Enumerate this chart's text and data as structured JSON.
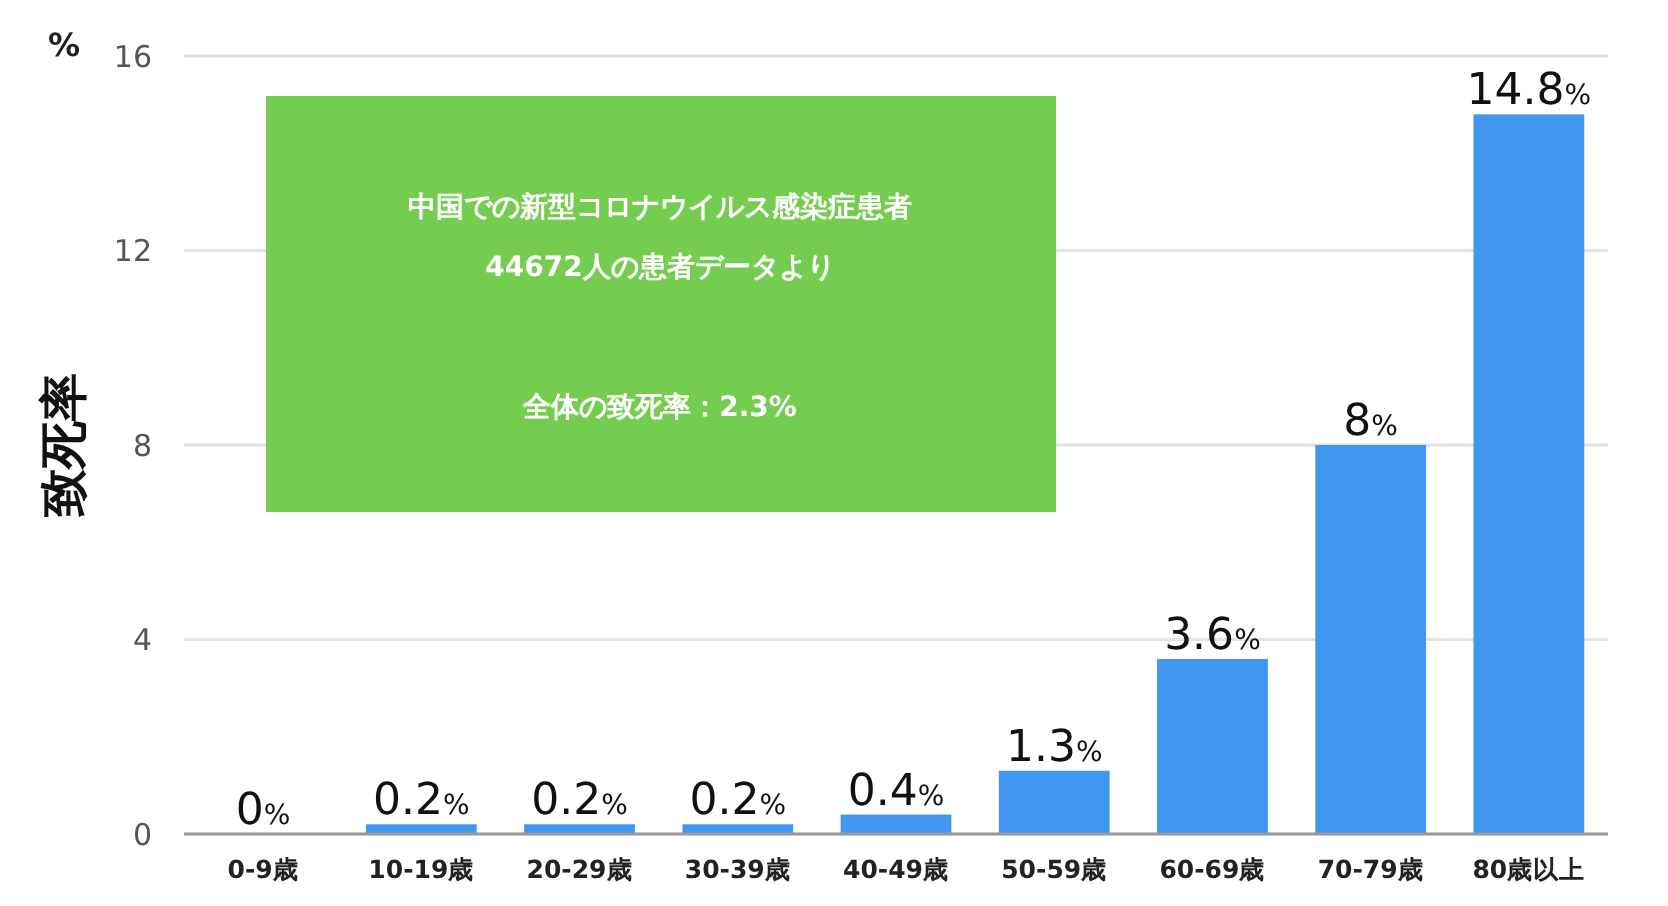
{
  "chart_data": {
    "type": "bar",
    "ylabel": "致死率",
    "categories": [
      "0-9歳",
      "10-19歳",
      "20-29歳",
      "30-39歳",
      "40-49歳",
      "50-59歳",
      "60-69歳",
      "70-79歳",
      "80歳以上"
    ],
    "values": [
      0,
      0.2,
      0.2,
      0.2,
      0.4,
      1.3,
      3.6,
      8,
      14.8
    ],
    "value_labels": [
      "0%",
      "0.2%",
      "0.2%",
      "0.2%",
      "0.4%",
      "1.3%",
      "3.6%",
      "8%",
      "14.8%"
    ],
    "color": "#4196f0",
    "ylim": [
      0,
      16
    ],
    "yticks": [
      0,
      4,
      8,
      12,
      16
    ],
    "grid": "y",
    "annotations": [
      "中国での新型コロナウイルス感染症患者",
      "44672人の患者データより",
      "全体の致死率：2.3%",
      "%"
    ]
  }
}
